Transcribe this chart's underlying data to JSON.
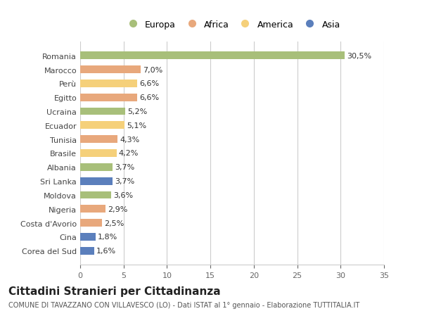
{
  "categories": [
    "Corea del Sud",
    "Cina",
    "Costa d'Avorio",
    "Nigeria",
    "Moldova",
    "Sri Lanka",
    "Albania",
    "Brasile",
    "Tunisia",
    "Ecuador",
    "Ucraina",
    "Egitto",
    "Perù",
    "Marocco",
    "Romania"
  ],
  "values": [
    1.6,
    1.8,
    2.5,
    2.9,
    3.6,
    3.7,
    3.7,
    4.2,
    4.3,
    5.1,
    5.2,
    6.6,
    6.6,
    7.0,
    30.5
  ],
  "labels": [
    "1,6%",
    "1,8%",
    "2,5%",
    "2,9%",
    "3,6%",
    "3,7%",
    "3,7%",
    "4,2%",
    "4,3%",
    "5,1%",
    "5,2%",
    "6,6%",
    "6,6%",
    "7,0%",
    "30,5%"
  ],
  "colors": [
    "#5b7fbc",
    "#5b7fbc",
    "#e8a87c",
    "#e8a87c",
    "#a8bf7a",
    "#5b7fbc",
    "#a8bf7a",
    "#f5d07a",
    "#e8a87c",
    "#f5d07a",
    "#a8bf7a",
    "#e8a87c",
    "#f5d07a",
    "#e8a87c",
    "#a8bf7a"
  ],
  "legend_labels": [
    "Europa",
    "Africa",
    "America",
    "Asia"
  ],
  "legend_colors": [
    "#a8bf7a",
    "#e8a87c",
    "#f5d07a",
    "#5b7fbc"
  ],
  "xlim": [
    0,
    35
  ],
  "xticks": [
    0,
    5,
    10,
    15,
    20,
    25,
    30,
    35
  ],
  "title": "Cittadini Stranieri per Cittadinanza",
  "subtitle": "COMUNE DI TAVAZZANO CON VILLAVESCO (LO) - Dati ISTAT al 1° gennaio - Elaborazione TUTTITALIA.IT",
  "bg_color": "#ffffff",
  "plot_bg_color": "#ffffff",
  "label_fontsize": 8.0,
  "tick_fontsize": 8.0,
  "title_fontsize": 11,
  "subtitle_fontsize": 7.0,
  "bar_height": 0.55
}
